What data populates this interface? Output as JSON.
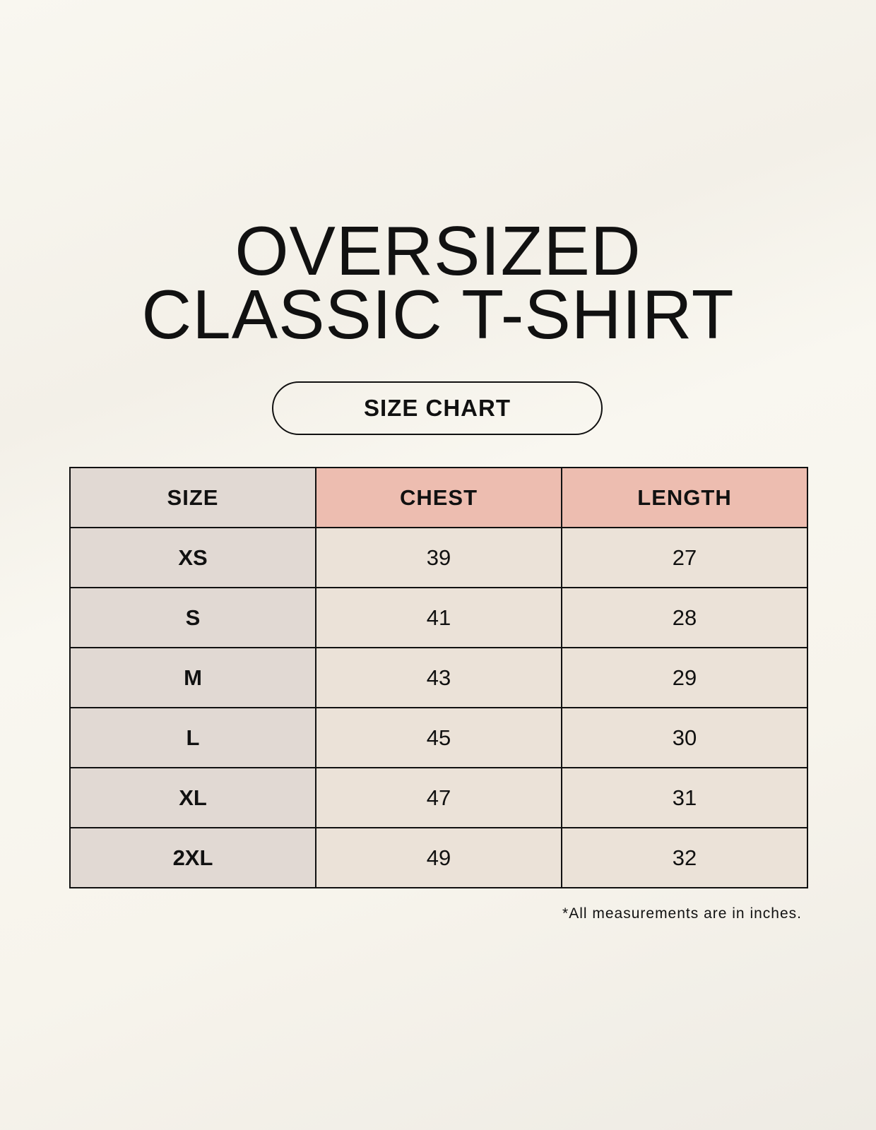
{
  "title": {
    "line1": "OVERSIZED",
    "line2": "CLASSIC T-SHIRT"
  },
  "badge": "SIZE CHART",
  "table": {
    "headers": [
      "SIZE",
      "CHEST",
      "LENGTH"
    ],
    "rows": [
      [
        "XS",
        "39",
        "27"
      ],
      [
        "S",
        "41",
        "28"
      ],
      [
        "M",
        "43",
        "29"
      ],
      [
        "L",
        "45",
        "30"
      ],
      [
        "XL",
        "47",
        "31"
      ],
      [
        "2XL",
        "49",
        "32"
      ]
    ]
  },
  "footnote": "*All measurements are in inches.",
  "colors": {
    "size_column": "#e1d9d3",
    "header_accent": "#edbdb0",
    "value_cells": "#ebe2d8"
  }
}
